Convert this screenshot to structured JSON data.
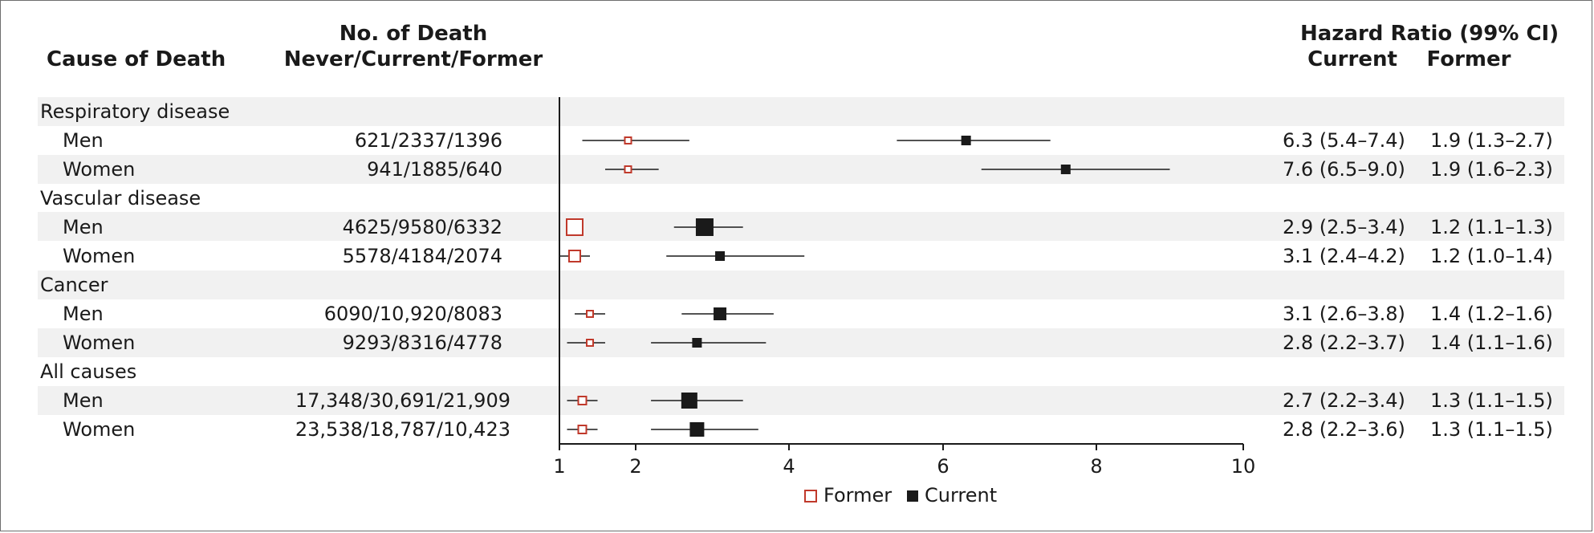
{
  "headers": {
    "cause": "Cause of Death",
    "deaths_line1": "No. of Death",
    "deaths_line2": "Never/Current/Former",
    "hazard_ratio": "Hazard Ratio (99% CI)",
    "current": "Current",
    "former": "Former"
  },
  "colors": {
    "former": "#c0392b",
    "current": "#1a1a1a",
    "stripe": "#f1f1f1"
  },
  "chart_data": {
    "type": "forest",
    "xlim": [
      1,
      10
    ],
    "xscale": "log",
    "xticks": [
      1,
      2,
      4,
      6,
      8,
      10
    ],
    "legend": [
      "Former",
      "Current"
    ],
    "groups": [
      "Respiratory disease",
      "Vascular disease",
      "Cancer",
      "All causes"
    ],
    "rows": [
      {
        "group": "Respiratory disease",
        "label": "Men",
        "deaths": "621/2337/1396",
        "current": {
          "hr": 6.3,
          "lo": 5.4,
          "hi": 7.4
        },
        "former": {
          "hr": 1.9,
          "lo": 1.3,
          "hi": 2.7
        },
        "hr_current_text": "6.3 (5.4–7.4)",
        "hr_former_text": "1.9 (1.3–2.7)"
      },
      {
        "group": "Respiratory disease",
        "label": "Women",
        "deaths": "941/1885/640",
        "current": {
          "hr": 7.6,
          "lo": 6.5,
          "hi": 9.0
        },
        "former": {
          "hr": 1.9,
          "lo": 1.6,
          "hi": 2.3
        },
        "hr_current_text": "7.6 (6.5–9.0)",
        "hr_former_text": "1.9 (1.6–2.3)"
      },
      {
        "group": "Vascular disease",
        "label": "Men",
        "deaths": "4625/9580/6332",
        "current": {
          "hr": 2.9,
          "lo": 2.5,
          "hi": 3.4
        },
        "former": {
          "hr": 1.2,
          "lo": 1.1,
          "hi": 1.3
        },
        "hr_current_text": "2.9 (2.5–3.4)",
        "hr_former_text": "1.2 (1.1–1.3)"
      },
      {
        "group": "Vascular disease",
        "label": "Women",
        "deaths": "5578/4184/2074",
        "current": {
          "hr": 3.1,
          "lo": 2.4,
          "hi": 4.2
        },
        "former": {
          "hr": 1.2,
          "lo": 1.0,
          "hi": 1.4
        },
        "hr_current_text": "3.1 (2.4–4.2)",
        "hr_former_text": "1.2 (1.0–1.4)"
      },
      {
        "group": "Cancer",
        "label": "Men",
        "deaths": "6090/10,920/8083",
        "current": {
          "hr": 3.1,
          "lo": 2.6,
          "hi": 3.8
        },
        "former": {
          "hr": 1.4,
          "lo": 1.2,
          "hi": 1.6
        },
        "hr_current_text": "3.1 (2.6–3.8)",
        "hr_former_text": "1.4 (1.2–1.6)"
      },
      {
        "group": "Cancer",
        "label": "Women",
        "deaths": "9293/8316/4778",
        "current": {
          "hr": 2.8,
          "lo": 2.2,
          "hi": 3.7
        },
        "former": {
          "hr": 1.4,
          "lo": 1.1,
          "hi": 1.6
        },
        "hr_current_text": "2.8 (2.2–3.7)",
        "hr_former_text": "1.4 (1.1–1.6)"
      },
      {
        "group": "All causes",
        "label": "Men",
        "deaths": "17,348/30,691/21,909",
        "current": {
          "hr": 2.7,
          "lo": 2.2,
          "hi": 3.4
        },
        "former": {
          "hr": 1.3,
          "lo": 1.1,
          "hi": 1.5
        },
        "hr_current_text": "2.7 (2.2–3.4)",
        "hr_former_text": "1.3 (1.1–1.5)"
      },
      {
        "group": "All causes",
        "label": "Women",
        "deaths": "23,538/18,787/10,423",
        "current": {
          "hr": 2.8,
          "lo": 2.2,
          "hi": 3.6
        },
        "former": {
          "hr": 1.3,
          "lo": 1.1,
          "hi": 1.5
        },
        "hr_current_text": "2.8 (2.2–3.6)",
        "hr_former_text": "1.3 (1.1–1.5)"
      }
    ]
  }
}
